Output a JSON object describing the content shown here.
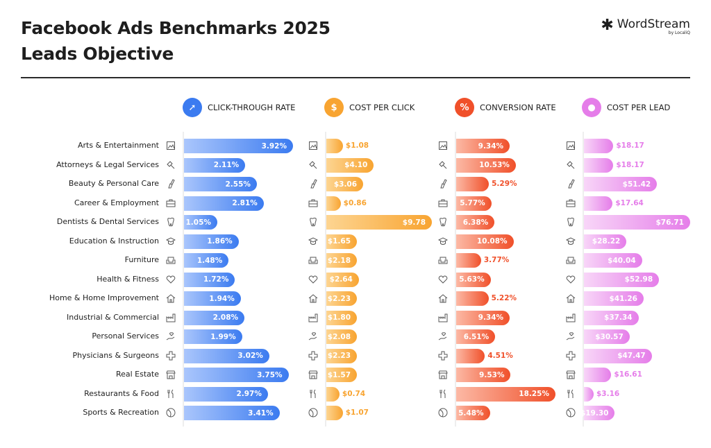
{
  "header": {
    "title_line1": "Facebook Ads Benchmarks 2025",
    "title_line2": "Leads Objective"
  },
  "logo": {
    "brand": "WordStream",
    "sub": "by LocaliQ"
  },
  "chart_data": {
    "type": "bar",
    "title": "Facebook Ads Benchmarks 2025 Leads Objective",
    "orientation": "horizontal",
    "categories": [
      "Arts & Entertainment",
      "Attorneys & Legal Services",
      "Beauty & Personal Care",
      "Career & Employment",
      "Dentists & Dental Services",
      "Education & Instruction",
      "Furniture",
      "Health & Fitness",
      "Home & Home Improvement",
      "Industrial & Commercial",
      "Personal Services",
      "Physicians & Surgeons",
      "Real Estate",
      "Restaurants & Food",
      "Sports & Recreation"
    ],
    "category_icons": [
      "picture-icon",
      "gavel-icon",
      "brush-icon",
      "briefcase-icon",
      "tooth-icon",
      "graduation-cap-icon",
      "armchair-icon",
      "heart-icon",
      "house-icon",
      "factory-icon",
      "hand-heart-icon",
      "medical-cross-icon",
      "storefront-icon",
      "fork-knife-icon",
      "ball-icon"
    ],
    "series": [
      {
        "name": "CLICK-THROUGH RATE",
        "unit": "%",
        "icon": "cursor-click-icon",
        "color_light": "#aac6fc",
        "color": "#3b7bf0",
        "values": [
          3.92,
          2.11,
          2.55,
          2.81,
          1.05,
          1.86,
          1.48,
          1.72,
          1.94,
          2.08,
          1.99,
          3.02,
          3.75,
          2.97,
          3.41
        ]
      },
      {
        "name": "COST PER CLICK",
        "unit": "$",
        "icon": "cursor-dollar-icon",
        "color_light": "#fdd592",
        "color": "#f8a431",
        "values": [
          1.08,
          4.1,
          3.06,
          0.86,
          9.78,
          1.65,
          2.18,
          2.64,
          2.23,
          1.8,
          2.08,
          2.23,
          1.57,
          0.74,
          1.07
        ]
      },
      {
        "name": "CONVERSION RATE",
        "unit": "%",
        "icon": "percent-icon",
        "color_light": "#fcb9a5",
        "color": "#f0502a",
        "values": [
          9.34,
          10.53,
          5.29,
          5.77,
          6.38,
          10.08,
          3.77,
          5.63,
          5.22,
          9.34,
          6.51,
          4.51,
          9.53,
          18.25,
          5.48
        ]
      },
      {
        "name": "COST PER LEAD",
        "unit": "$",
        "icon": "person-dollar-icon",
        "color_light": "#f8d6f8",
        "color": "#e57de9",
        "values": [
          18.17,
          18.17,
          51.42,
          17.64,
          76.71,
          28.22,
          40.04,
          52.98,
          41.26,
          37.34,
          30.57,
          47.47,
          16.61,
          3.16,
          19.3
        ]
      }
    ],
    "grid": false,
    "legend": "top"
  }
}
